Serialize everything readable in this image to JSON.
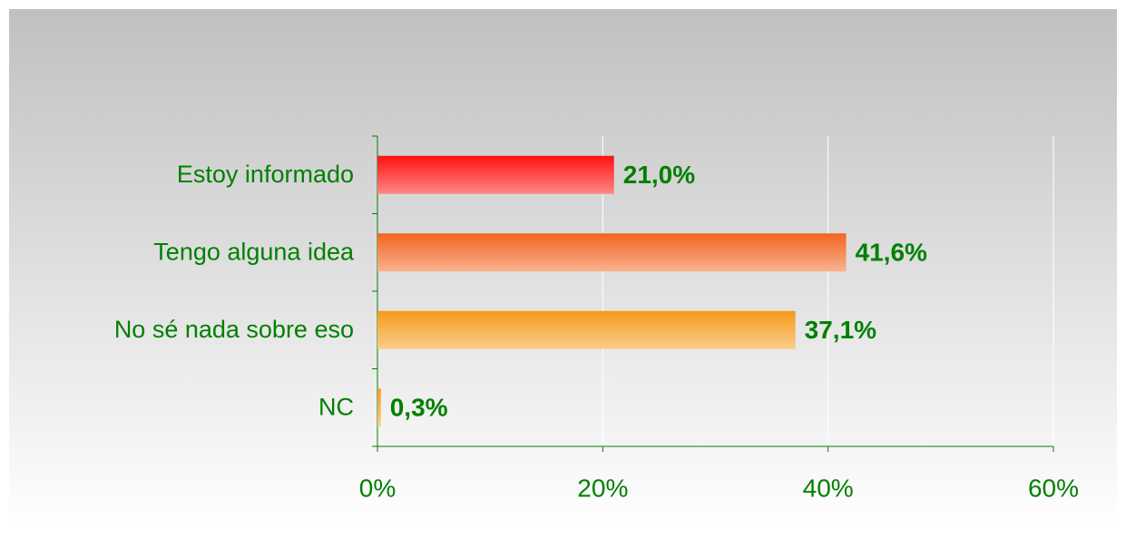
{
  "chart_data": {
    "type": "hbar",
    "categories": [
      "Estoy informado",
      "Tengo alguna idea",
      "No sé nada sobre eso",
      "NC"
    ],
    "values": [
      21.0,
      41.6,
      37.1,
      0.3
    ],
    "value_labels": [
      "21,0%",
      "41,6%",
      "37,1%",
      "0,3%"
    ],
    "colors": [
      "#ff1010",
      "#f26420",
      "#f59a18",
      "#f59a18"
    ],
    "xlim": [
      0,
      60
    ],
    "xticks": [
      {
        "value": 0,
        "label": "0%"
      },
      {
        "value": 20,
        "label": "20%"
      },
      {
        "value": 40,
        "label": "40%"
      },
      {
        "value": 60,
        "label": "60%"
      }
    ],
    "grid": true
  }
}
